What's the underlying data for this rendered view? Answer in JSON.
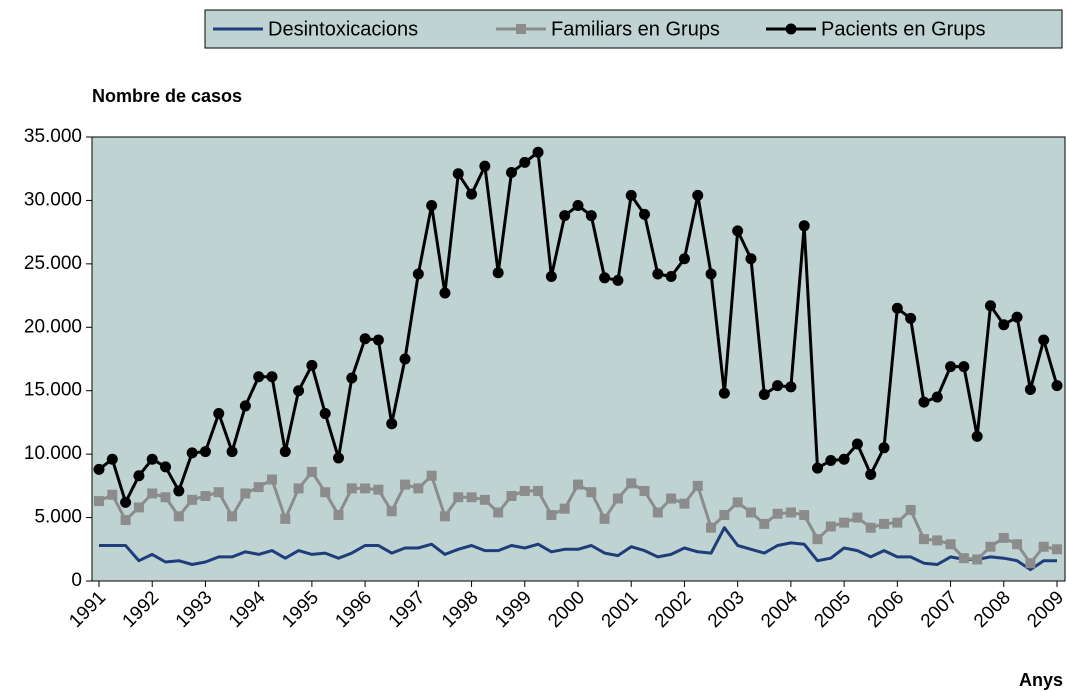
{
  "chart_data": {
    "type": "line",
    "y_axis_title": "Nombre de casos",
    "x_axis_title": "Anys",
    "categories": [
      "1991",
      null,
      null,
      null,
      "1992",
      null,
      null,
      null,
      "1993",
      null,
      null,
      null,
      "1994",
      null,
      null,
      null,
      "1995",
      null,
      null,
      null,
      "1996",
      null,
      null,
      null,
      "1997",
      null,
      null,
      null,
      "1998",
      null,
      null,
      null,
      "1999",
      null,
      null,
      null,
      "2000",
      null,
      null,
      null,
      "2001",
      null,
      null,
      null,
      "2002",
      null,
      null,
      null,
      "2003",
      null,
      null,
      null,
      "2004",
      null,
      null,
      null,
      "2005",
      null,
      null,
      null,
      "2006",
      null,
      null,
      null,
      "2007",
      null,
      null,
      null,
      "2008",
      null,
      null,
      null,
      "2009"
    ],
    "series": [
      {
        "name": "Desintoxicacions",
        "color": "#1f3d7a",
        "marker": "none",
        "values": [
          2800,
          2800,
          2800,
          1600,
          2100,
          1500,
          1600,
          1300,
          1500,
          1900,
          1900,
          2300,
          2100,
          2400,
          1800,
          2400,
          2100,
          2200,
          1800,
          2200,
          2800,
          2800,
          2200,
          2600,
          2600,
          2900,
          2100,
          2500,
          2800,
          2400,
          2400,
          2800,
          2600,
          2900,
          2300,
          2500,
          2500,
          2800,
          2200,
          2000,
          2700,
          2400,
          1900,
          2100,
          2600,
          2300,
          2200,
          4200,
          2800,
          2500,
          2200,
          2800,
          3000,
          2900,
          1600,
          1800,
          2600,
          2400,
          1900,
          2400,
          1900,
          1900,
          1400,
          1300,
          1900,
          1700,
          1700,
          1900,
          1800,
          1600,
          900,
          1600,
          1600
        ]
      },
      {
        "name": "Familiars en Grups",
        "color": "#8c8c8c",
        "marker": "square",
        "values": [
          6300,
          6800,
          4800,
          5800,
          6900,
          6600,
          5100,
          6400,
          6700,
          7000,
          5100,
          6900,
          7400,
          8000,
          4900,
          7300,
          8600,
          7000,
          5200,
          7300,
          7300,
          7200,
          5500,
          7600,
          7300,
          8300,
          5100,
          6600,
          6600,
          6400,
          5400,
          6700,
          7100,
          7100,
          5200,
          5700,
          7600,
          7000,
          4900,
          6500,
          7700,
          7100,
          5400,
          6500,
          6100,
          7500,
          4200,
          5200,
          6200,
          5400,
          4500,
          5300,
          5400,
          5200,
          3300,
          4300,
          4600,
          5000,
          4200,
          4500,
          4600,
          5600,
          3300,
          3200,
          2900,
          1800,
          1700,
          2700,
          3400,
          2900,
          1400,
          2700,
          2500
        ]
      },
      {
        "name": "Pacients en Grups",
        "color": "#000000",
        "marker": "circle",
        "values": [
          8800,
          9600,
          6200,
          8300,
          9600,
          9000,
          7100,
          10100,
          10200,
          13200,
          10200,
          13800,
          16100,
          16100,
          10200,
          15000,
          17000,
          13200,
          9700,
          16000,
          19100,
          19000,
          12400,
          17500,
          24200,
          29600,
          22700,
          32100,
          30500,
          32700,
          24300,
          32200,
          33000,
          33800,
          24000,
          28800,
          29600,
          28800,
          23900,
          23700,
          30400,
          28900,
          24200,
          24000,
          25400,
          30400,
          24200,
          14800,
          27600,
          25400,
          14700,
          15400,
          15300,
          28000,
          8900,
          9500,
          9600,
          10800,
          8400,
          10500,
          21500,
          20700,
          14100,
          14500,
          16900,
          16900,
          11400,
          21700,
          20200,
          20800,
          15100,
          19000,
          15400
        ]
      }
    ],
    "ylim": [
      0,
      35000
    ],
    "yticks": [
      0,
      {
        "value": 5000,
        "label": "5.000"
      },
      {
        "value": 10000,
        "label": "10.000"
      },
      {
        "value": 15000,
        "label": "15.000"
      },
      {
        "value": 20000,
        "label": "20.000"
      },
      {
        "value": 25000,
        "label": "25.000"
      },
      {
        "value": 30000,
        "label": "30.000"
      },
      {
        "value": 35000,
        "label": "35.000"
      }
    ],
    "grid": false,
    "legend": "top",
    "plot_background": "#bfd3d3"
  }
}
